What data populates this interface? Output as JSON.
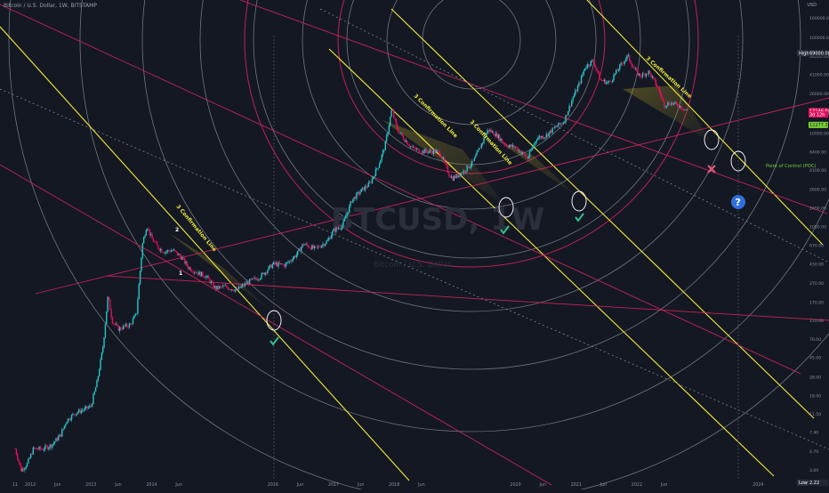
{
  "header": {
    "symbol_line": "Bitcoin / U.S. Dollar, 1W, BITSTAMP",
    "currency": "USD"
  },
  "watermark": {
    "ticker": "BTCUSD, 1W",
    "sub": "Bitcoin / U.S. Dollar"
  },
  "chart_data": {
    "type": "line",
    "yscale": "log",
    "ylim": [
      2.6,
      210000
    ],
    "xlim": [
      2011.5,
      2024.7
    ],
    "y_ticks": [
      "160000.00",
      "100000.00",
      "64000.00",
      "41000.00",
      "26000.00",
      "16000.00",
      "10000.00",
      "6400.00",
      "4100.00",
      "2600.00",
      "1650.00",
      "1050.00",
      "670.00",
      "430.00",
      "270.00",
      "170.00",
      "110.00",
      "70.00",
      "45.00",
      "28.00",
      "18.00",
      "11.50",
      "7.40",
      "4.70",
      "3.00"
    ],
    "y_tick_values": [
      160000,
      100000,
      64000,
      41000,
      26000,
      16000,
      10000,
      6400,
      4100,
      2600,
      1650,
      1050,
      670,
      430,
      270,
      170,
      110,
      70,
      45,
      28,
      18,
      11.5,
      7.4,
      4.7,
      3
    ],
    "x_ticks": [
      {
        "label": "11",
        "t": 2011.75
      },
      {
        "label": "2012",
        "t": 2012.0
      },
      {
        "label": "Jun",
        "t": 2012.45
      },
      {
        "label": "2013",
        "t": 2013.0
      },
      {
        "label": "Jun",
        "t": 2013.45
      },
      {
        "label": "2014",
        "t": 2014.0
      },
      {
        "label": "Jun",
        "t": 2014.45
      },
      {
        "label": "2016",
        "t": 2016.0
      },
      {
        "label": "Jun",
        "t": 2016.45
      },
      {
        "label": "2017",
        "t": 2017.0
      },
      {
        "label": "Jun",
        "t": 2017.45
      },
      {
        "label": "2018",
        "t": 2018.0
      },
      {
        "label": "Jun",
        "t": 2018.45
      },
      {
        "label": "2020",
        "t": 2020.0
      },
      {
        "label": "Jun",
        "t": 2020.45
      },
      {
        "label": "2021",
        "t": 2021.0
      },
      {
        "label": "Jun",
        "t": 2021.45
      },
      {
        "label": "2022",
        "t": 2022.0
      },
      {
        "label": "Jun",
        "t": 2022.45
      },
      {
        "label": "2024",
        "t": 2024.0
      }
    ],
    "series": [
      {
        "x": [
          2011.75,
          2011.85,
          2011.95,
          2012.05,
          2012.2,
          2012.35,
          2012.5,
          2012.6,
          2012.75,
          2012.9,
          2013.0,
          2013.1,
          2013.2,
          2013.28,
          2013.35,
          2013.45,
          2013.55,
          2013.65,
          2013.75,
          2013.85,
          2013.92,
          2014.0,
          2014.1,
          2014.2,
          2014.35,
          2014.5,
          2014.6,
          2014.75,
          2014.9,
          2015.05,
          2015.2,
          2015.4,
          2015.6,
          2015.8,
          2016.0,
          2016.2,
          2016.4,
          2016.5,
          2016.7,
          2016.9,
          2017.0,
          2017.15,
          2017.3,
          2017.45,
          2017.6,
          2017.75,
          2017.85,
          2017.96,
          2018.05,
          2018.15,
          2018.3,
          2018.45,
          2018.6,
          2018.75,
          2018.9,
          2018.96,
          2019.1,
          2019.3,
          2019.45,
          2019.55,
          2019.7,
          2019.85,
          2020.0,
          2020.2,
          2020.35,
          2020.5,
          2020.65,
          2020.8,
          2020.95,
          2021.05,
          2021.15,
          2021.28,
          2021.4,
          2021.55,
          2021.7,
          2021.85,
          2021.95,
          2022.05,
          2022.2,
          2022.35,
          2022.45,
          2022.55,
          2022.7,
          2022.85
        ],
        "y": [
          5,
          3,
          3.5,
          5,
          5,
          5.5,
          7,
          10,
          12,
          13,
          14,
          25,
          60,
          200,
          110,
          90,
          95,
          100,
          130,
          700,
          1100,
          800,
          650,
          580,
          600,
          500,
          400,
          350,
          320,
          240,
          250,
          230,
          280,
          320,
          430,
          420,
          550,
          700,
          620,
          750,
          960,
          1100,
          2000,
          2500,
          3000,
          4800,
          7500,
          18000,
          11000,
          9000,
          7000,
          6500,
          6500,
          6400,
          3800,
          3400,
          3800,
          5000,
          8000,
          11000,
          9500,
          7500,
          7200,
          5500,
          9000,
          9500,
          11500,
          13500,
          24000,
          33000,
          50000,
          58000,
          36000,
          34000,
          48000,
          65000,
          48000,
          40000,
          44000,
          30000,
          20000,
          21000,
          19500,
          17000
        ]
      }
    ],
    "price_tags": [
      {
        "label": "High",
        "value": "69000.00",
        "y": 69000,
        "color": "#ffffff"
      },
      {
        "label": "",
        "value": "17146.00",
        "y": 17146,
        "color": "#e0105a"
      },
      {
        "label": "",
        "value": "3d 12h",
        "y": 15800,
        "color": "#e0105a"
      },
      {
        "label": "",
        "value": "12277.33",
        "y": 12277,
        "color": "#7bd23a"
      },
      {
        "label": "Low",
        "value": "2.22",
        "y": 2.22,
        "color": "#ffffff"
      }
    ],
    "annotations": {
      "confirmation_label": "3 Confirmation Line",
      "point1": "1",
      "point2": "2",
      "poc_label": "Point of Control (POC)",
      "question": "?"
    },
    "grid": false,
    "legend": "none"
  }
}
